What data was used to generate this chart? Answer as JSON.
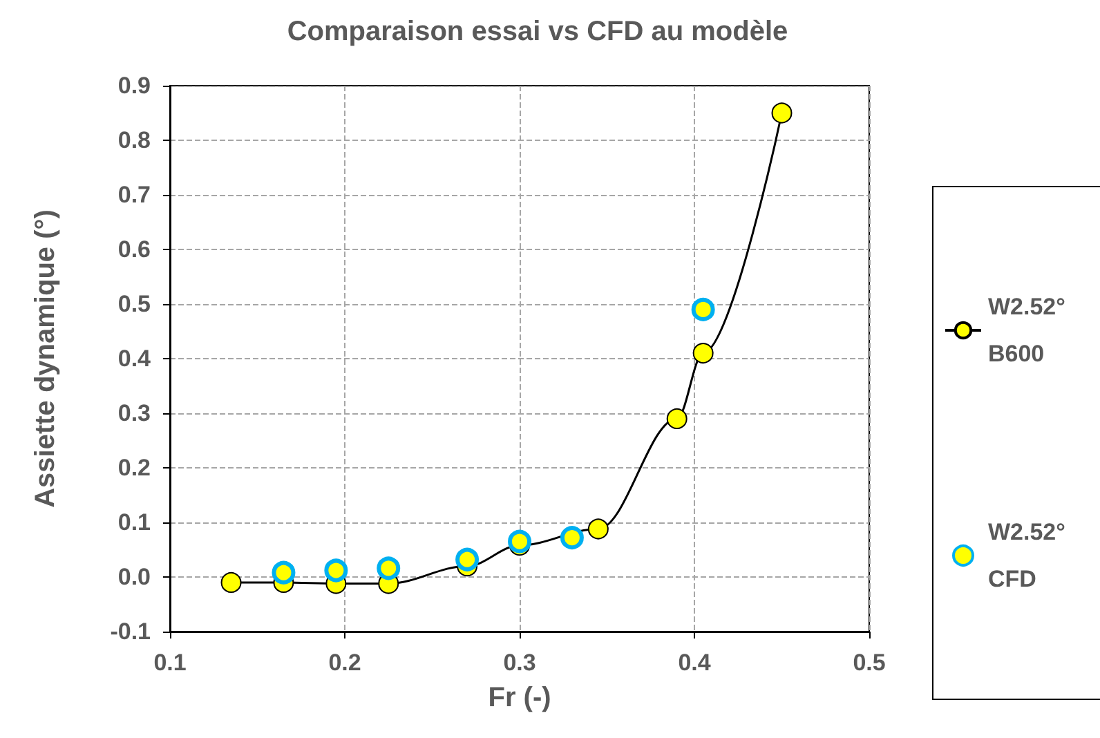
{
  "chart_data": {
    "type": "line",
    "title": "Comparaison essai vs CFD au modèle",
    "xlabel": "Fr (-)",
    "ylabel": "Assiette dynamique (°)",
    "xlim": [
      0.1,
      0.5
    ],
    "xticks": [
      0.1,
      0.2,
      0.3,
      0.4,
      0.5
    ],
    "ylim": [
      -0.1,
      0.9
    ],
    "yticks": [
      -0.1,
      {
        "value": 0,
        "label": "0.0"
      },
      0.1,
      0.2,
      0.3,
      0.4,
      0.5,
      0.6,
      0.7,
      0.8,
      0.9
    ],
    "grid": true,
    "legend": "right",
    "marker": "circle",
    "line_style": "solid",
    "series": [
      {
        "name": "W2.52° B600",
        "color": "#ffff00",
        "x": [
          0.135,
          0.165,
          0.195,
          0.225,
          0.27,
          0.3,
          0.345,
          0.39,
          0.405,
          0.45
        ],
        "values": [
          -0.01,
          -0.01,
          -0.012,
          -0.012,
          0.02,
          0.058,
          0.088,
          0.29,
          0.41,
          0.85
        ]
      },
      {
        "name": "W2.52° CFD",
        "type": "scatter",
        "color": "#00b0f0",
        "x": [
          0.165,
          0.195,
          0.225,
          0.27,
          0.3,
          0.33,
          0.405
        ],
        "values": [
          0.008,
          0.012,
          0.016,
          0.032,
          0.065,
          0.072,
          0.49
        ]
      }
    ]
  }
}
